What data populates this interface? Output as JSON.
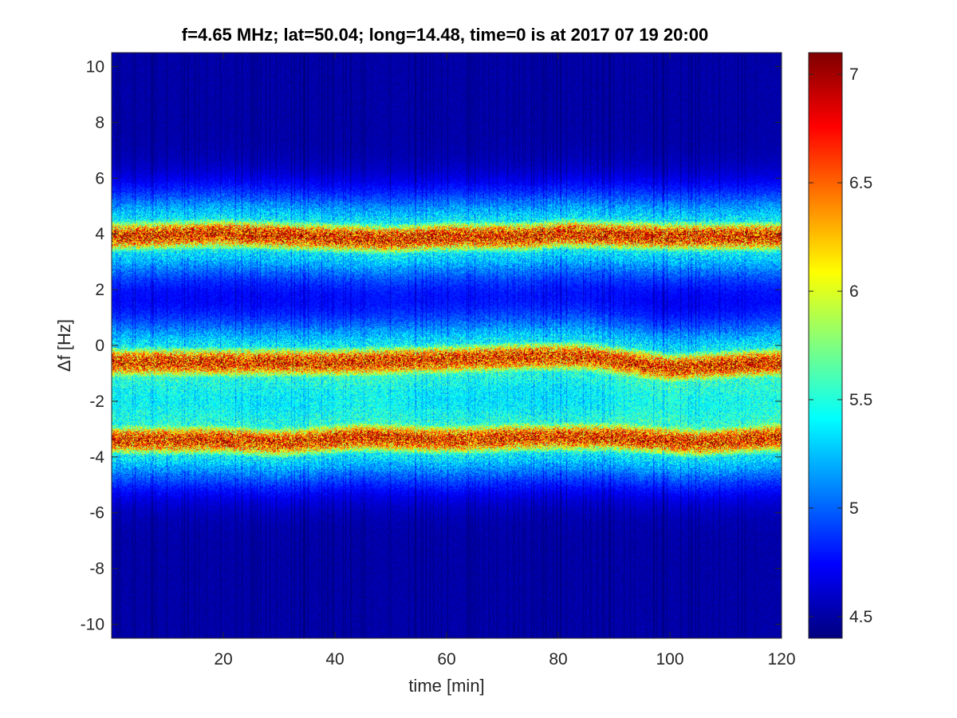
{
  "chart_data": {
    "type": "heatmap",
    "title": "f=4.65 MHz;  lat=50.04; long=14.48, time=0 is at 2017 07 19 20:00",
    "xlabel": "time [min]",
    "ylabel": "Δf [Hz]",
    "xlim": [
      0,
      120
    ],
    "ylim": [
      -10.5,
      10.5
    ],
    "xticks": [
      20,
      40,
      60,
      80,
      100,
      120
    ],
    "yticks": [
      10,
      8,
      6,
      4,
      2,
      0,
      -2,
      -4,
      -6,
      -8,
      -10
    ],
    "colorbar": {
      "colormap": "jet",
      "clim": [
        4.4,
        7.1
      ],
      "ticks": [
        7,
        6.5,
        6,
        5.5,
        5,
        4.5
      ]
    },
    "bands": [
      {
        "center": [
          [
            0,
            3.9
          ],
          [
            20,
            4.0
          ],
          [
            35,
            3.9
          ],
          [
            50,
            3.8
          ],
          [
            60,
            3.9
          ],
          [
            75,
            3.9
          ],
          [
            80,
            4.0
          ],
          [
            100,
            3.9
          ],
          [
            120,
            3.9
          ]
        ],
        "peak": 7.1
      },
      {
        "center": [
          [
            0,
            -0.6
          ],
          [
            20,
            -0.6
          ],
          [
            40,
            -0.6
          ],
          [
            60,
            -0.5
          ],
          [
            75,
            -0.4
          ],
          [
            85,
            -0.4
          ],
          [
            100,
            -0.8
          ],
          [
            120,
            -0.6
          ]
        ],
        "peak": 7.0
      },
      {
        "center": [
          [
            0,
            -3.4
          ],
          [
            20,
            -3.4
          ],
          [
            30,
            -3.5
          ],
          [
            45,
            -3.3
          ],
          [
            60,
            -3.4
          ],
          [
            75,
            -3.3
          ],
          [
            90,
            -3.3
          ],
          [
            105,
            -3.5
          ],
          [
            120,
            -3.3
          ]
        ],
        "peak": 7.0
      }
    ]
  }
}
